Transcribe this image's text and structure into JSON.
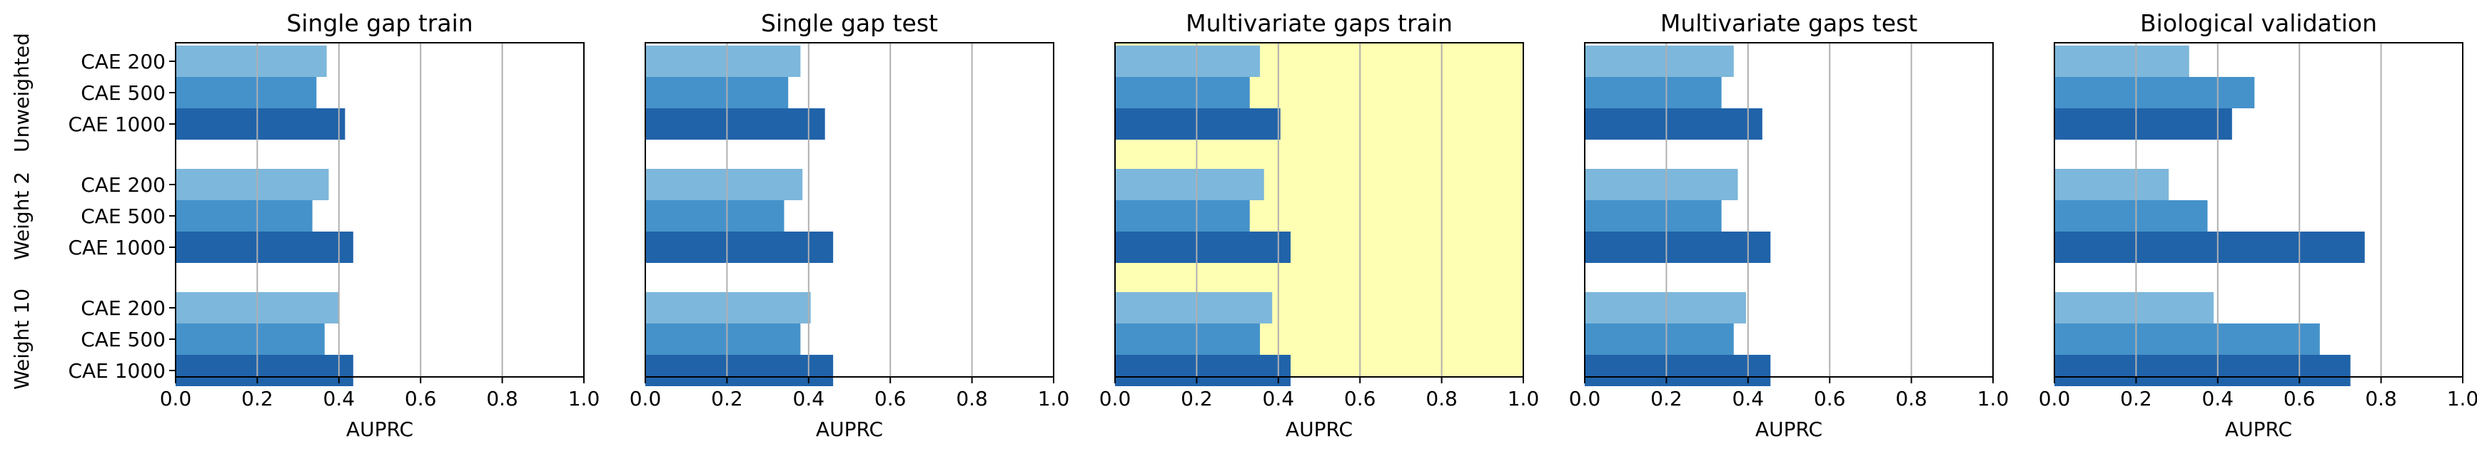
{
  "figure": {
    "group_labels": [
      "Unweighted",
      "Weight 2",
      "Weight 10"
    ],
    "model_labels": [
      "CAE 200",
      "CAE 500",
      "CAE 1000"
    ],
    "colors": {
      "CAE 200": "#7db7db",
      "CAE 500": "#4592ca",
      "CAE 1000": "#2063a9",
      "highlight": "#ffffb3",
      "grid": "#b0b0b0"
    }
  },
  "chart_data": [
    {
      "type": "bar",
      "orientation": "horizontal",
      "title": "Single gap train",
      "xlabel": "AUPRC",
      "xlim": [
        0,
        1
      ],
      "xticks": [
        "0.0",
        "0.2",
        "0.4",
        "0.6",
        "0.8",
        "1.0"
      ],
      "grid": "vertical",
      "highlight": false,
      "groups": [
        {
          "name": "Unweighted",
          "values": [
            0.37,
            0.345,
            0.415
          ]
        },
        {
          "name": "Weight 2",
          "values": [
            0.375,
            0.335,
            0.435
          ]
        },
        {
          "name": "Weight 10",
          "values": [
            0.4,
            0.365,
            0.435
          ]
        }
      ]
    },
    {
      "type": "bar",
      "orientation": "horizontal",
      "title": "Single gap test",
      "xlabel": "AUPRC",
      "xlim": [
        0,
        1
      ],
      "xticks": [
        "0.0",
        "0.2",
        "0.4",
        "0.6",
        "0.8",
        "1.0"
      ],
      "grid": "vertical",
      "highlight": false,
      "groups": [
        {
          "name": "Unweighted",
          "values": [
            0.38,
            0.35,
            0.44
          ]
        },
        {
          "name": "Weight 2",
          "values": [
            0.385,
            0.34,
            0.46
          ]
        },
        {
          "name": "Weight 10",
          "values": [
            0.405,
            0.38,
            0.46
          ]
        }
      ]
    },
    {
      "type": "bar",
      "orientation": "horizontal",
      "title": "Multivariate gaps train",
      "xlabel": "AUPRC",
      "xlim": [
        0,
        1
      ],
      "xticks": [
        "0.0",
        "0.2",
        "0.4",
        "0.6",
        "0.8",
        "1.0"
      ],
      "grid": "vertical",
      "highlight": true,
      "groups": [
        {
          "name": "Unweighted",
          "values": [
            0.355,
            0.33,
            0.405
          ]
        },
        {
          "name": "Weight 2",
          "values": [
            0.365,
            0.33,
            0.43
          ]
        },
        {
          "name": "Weight 10",
          "values": [
            0.385,
            0.355,
            0.43
          ]
        }
      ]
    },
    {
      "type": "bar",
      "orientation": "horizontal",
      "title": "Multivariate gaps test",
      "xlabel": "AUPRC",
      "xlim": [
        0,
        1
      ],
      "xticks": [
        "0.0",
        "0.2",
        "0.4",
        "0.6",
        "0.8",
        "1.0"
      ],
      "grid": "vertical",
      "highlight": false,
      "groups": [
        {
          "name": "Unweighted",
          "values": [
            0.365,
            0.335,
            0.435
          ]
        },
        {
          "name": "Weight 2",
          "values": [
            0.375,
            0.335,
            0.455
          ]
        },
        {
          "name": "Weight 10",
          "values": [
            0.395,
            0.365,
            0.455
          ]
        }
      ]
    },
    {
      "type": "bar",
      "orientation": "horizontal",
      "title": "Biological validation",
      "xlabel": "AUPRC",
      "xlim": [
        0,
        1
      ],
      "xticks": [
        "0.0",
        "0.2",
        "0.4",
        "0.6",
        "0.8",
        "1.0"
      ],
      "grid": "vertical",
      "highlight": false,
      "groups": [
        {
          "name": "Unweighted",
          "values": [
            0.33,
            0.49,
            0.435
          ]
        },
        {
          "name": "Weight 2",
          "values": [
            0.28,
            0.375,
            0.76
          ]
        },
        {
          "name": "Weight 10",
          "values": [
            0.39,
            0.65,
            0.725
          ]
        }
      ]
    }
  ]
}
